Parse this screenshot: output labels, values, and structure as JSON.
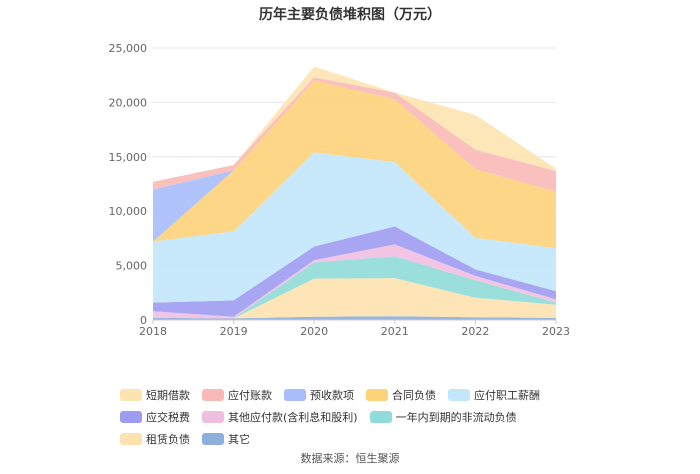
{
  "chart_data": {
    "type": "area",
    "title": "历年主要负债堆积图（万元）",
    "x": [
      "2018",
      "2019",
      "2020",
      "2021",
      "2022",
      "2023"
    ],
    "ylim": [
      0,
      25000
    ],
    "yticks": [
      "0",
      "5,000",
      "10,000",
      "15,000",
      "20,000",
      "25,000"
    ],
    "ytick_values": [
      0,
      5000,
      10000,
      15000,
      20000,
      25000
    ],
    "grid": true,
    "legend_position": "bottom",
    "series": [
      {
        "name": "其它",
        "color": "#8eaedc",
        "values": [
          200,
          150,
          300,
          350,
          250,
          200
        ]
      },
      {
        "name": "租赁负债",
        "color": "#fde2b0",
        "values": [
          0,
          0,
          3500,
          3500,
          1800,
          1200
        ]
      },
      {
        "name": "一年内到期的非流动负债",
        "color": "#8fdcd8",
        "values": [
          0,
          0,
          1500,
          2000,
          1600,
          200
        ]
      },
      {
        "name": "其他应付款(含利息和股利)",
        "color": "#efbfe0",
        "values": [
          600,
          150,
          200,
          1100,
          400,
          300
        ]
      },
      {
        "name": "应交税费",
        "color": "#9e9cf2",
        "values": [
          800,
          1500,
          1250,
          1650,
          600,
          750
        ]
      },
      {
        "name": "应付职工薪酬",
        "color": "#c2e7fb",
        "values": [
          5600,
          6350,
          8650,
          5900,
          2900,
          3950
        ]
      },
      {
        "name": "合同负债",
        "color": "#fdd37a",
        "values": [
          0,
          5600,
          6600,
          5800,
          6300,
          5200
        ]
      },
      {
        "name": "预收款项",
        "color": "#a9bdfb",
        "values": [
          4800,
          0,
          0,
          0,
          0,
          0
        ]
      },
      {
        "name": "应付账款",
        "color": "#f9b9b6",
        "values": [
          700,
          500,
          300,
          600,
          1800,
          1900
        ]
      },
      {
        "name": "短期借款",
        "color": "#fde3b0",
        "values": [
          0,
          0,
          1000,
          0,
          3200,
          200
        ]
      }
    ],
    "legend_order": [
      "短期借款",
      "应付账款",
      "预收款项",
      "合同负债",
      "应付职工薪酬",
      "应交税费",
      "其他应付款(含利息和股利)",
      "一年内到期的非流动负债",
      "租赁负债",
      "其它"
    ]
  },
  "footer": {
    "source": "数据来源：恒生聚源"
  }
}
